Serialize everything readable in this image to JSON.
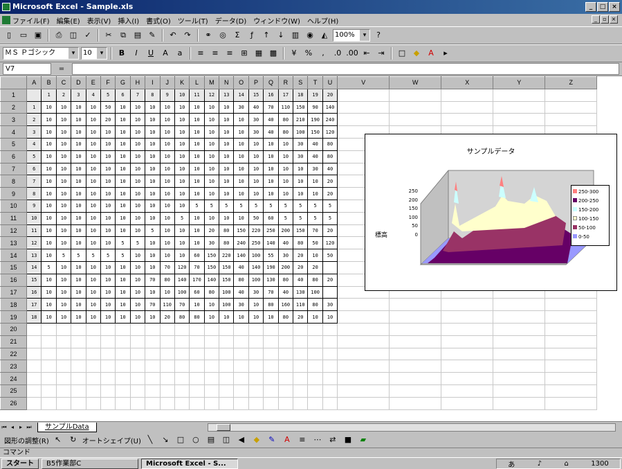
{
  "window": {
    "title": "Microsoft Excel - Sample.xls",
    "controls": [
      "_",
      "□",
      "×"
    ]
  },
  "menu": [
    "ファイル(F)",
    "編集(E)",
    "表示(V)",
    "挿入(I)",
    "書式(O)",
    "ツール(T)",
    "データ(D)",
    "ウィンドウ(W)",
    "ヘルプ(H)"
  ],
  "toolbar": {
    "zoom": "100%",
    "font_name": "ＭＳ Ｐゴシック",
    "font_size": "10"
  },
  "formula": {
    "name_box": "V7",
    "fx": "="
  },
  "grid": {
    "columns": [
      "A",
      "B",
      "C",
      "D",
      "E",
      "F",
      "G",
      "H",
      "I",
      "J",
      "K",
      "L",
      "M",
      "N",
      "O",
      "P",
      "Q",
      "R",
      "S",
      "T",
      "U",
      "V",
      "W",
      "X",
      "Y",
      "Z"
    ],
    "rows": [
      "1",
      "2",
      "3",
      "4",
      "5",
      "6",
      "7",
      "8",
      "9",
      "10",
      "11",
      "12",
      "13",
      "14",
      "15",
      "16",
      "17",
      "18",
      "19",
      "20",
      "21",
      "22",
      "23",
      "24",
      "25",
      "26"
    ],
    "header_row": [
      "",
      "1",
      "2",
      "3",
      "4",
      "5",
      "6",
      "7",
      "8",
      "9",
      "10",
      "11",
      "12",
      "13",
      "14",
      "15",
      "16",
      "17",
      "18",
      "19",
      "20"
    ],
    "data": [
      [
        "1",
        "10",
        "10",
        "10",
        "10",
        "50",
        "10",
        "10",
        "10",
        "10",
        "10",
        "10",
        "10",
        "10",
        "30",
        "40",
        "70",
        "110",
        "150",
        "90",
        "140",
        "210"
      ],
      [
        "2",
        "10",
        "10",
        "10",
        "10",
        "20",
        "10",
        "10",
        "10",
        "10",
        "10",
        "10",
        "10",
        "10",
        "10",
        "30",
        "40",
        "80",
        "210",
        "190",
        "240"
      ],
      [
        "3",
        "10",
        "10",
        "10",
        "10",
        "10",
        "10",
        "10",
        "10",
        "10",
        "10",
        "10",
        "10",
        "10",
        "10",
        "30",
        "40",
        "80",
        "100",
        "150",
        "120"
      ],
      [
        "4",
        "10",
        "10",
        "10",
        "10",
        "10",
        "10",
        "10",
        "10",
        "10",
        "10",
        "10",
        "10",
        "10",
        "10",
        "10",
        "10",
        "10",
        "30",
        "40",
        "80",
        "100"
      ],
      [
        "5",
        "10",
        "10",
        "10",
        "10",
        "10",
        "10",
        "10",
        "10",
        "10",
        "10",
        "10",
        "10",
        "10",
        "10",
        "10",
        "10",
        "10",
        "30",
        "40",
        "80",
        "10"
      ],
      [
        "6",
        "10",
        "10",
        "10",
        "10",
        "10",
        "10",
        "10",
        "10",
        "10",
        "10",
        "10",
        "10",
        "10",
        "10",
        "10",
        "10",
        "10",
        "10",
        "30",
        "40",
        "10"
      ],
      [
        "7",
        "10",
        "10",
        "10",
        "10",
        "10",
        "10",
        "10",
        "10",
        "10",
        "10",
        "10",
        "10",
        "10",
        "10",
        "10",
        "10",
        "10",
        "10",
        "10",
        "20",
        "10"
      ],
      [
        "8",
        "10",
        "10",
        "10",
        "10",
        "10",
        "10",
        "10",
        "10",
        "10",
        "10",
        "10",
        "10",
        "10",
        "10",
        "10",
        "10",
        "10",
        "10",
        "10",
        "20",
        "10"
      ],
      [
        "9",
        "10",
        "10",
        "10",
        "10",
        "10",
        "10",
        "10",
        "10",
        "10",
        "10",
        "5",
        "5",
        "5",
        "5",
        "5",
        "5",
        "5",
        "5",
        "5",
        "5",
        "5"
      ],
      [
        "10",
        "10",
        "10",
        "10",
        "10",
        "10",
        "10",
        "10",
        "10",
        "10",
        "5",
        "10",
        "10",
        "10",
        "10",
        "50",
        "60",
        "5",
        "5",
        "5",
        "5"
      ],
      [
        "11",
        "10",
        "10",
        "10",
        "10",
        "10",
        "10",
        "10",
        "5",
        "10",
        "10",
        "10",
        "20",
        "80",
        "150",
        "220",
        "250",
        "200",
        "150",
        "70",
        "20",
        "50"
      ],
      [
        "12",
        "10",
        "10",
        "10",
        "10",
        "10",
        "5",
        "5",
        "10",
        "10",
        "10",
        "10",
        "30",
        "80",
        "240",
        "250",
        "140",
        "40",
        "80",
        "50",
        "120",
        "100"
      ],
      [
        "13",
        "10",
        "5",
        "5",
        "5",
        "5",
        "5",
        "10",
        "10",
        "10",
        "10",
        "60",
        "150",
        "220",
        "140",
        "100",
        "55",
        "30",
        "20",
        "10",
        "50"
      ],
      [
        "14",
        "5",
        "10",
        "10",
        "10",
        "10",
        "10",
        "10",
        "10",
        "70",
        "120",
        "70",
        "150",
        "150",
        "40",
        "140",
        "190",
        "200",
        "20",
        "20"
      ],
      [
        "15",
        "10",
        "10",
        "10",
        "10",
        "10",
        "10",
        "10",
        "70",
        "80",
        "140",
        "170",
        "140",
        "150",
        "80",
        "100",
        "130",
        "80",
        "40",
        "80",
        "20"
      ],
      [
        "16",
        "10",
        "10",
        "10",
        "10",
        "10",
        "10",
        "10",
        "10",
        "10",
        "100",
        "60",
        "80",
        "100",
        "40",
        "30",
        "70",
        "40",
        "130",
        "100"
      ],
      [
        "17",
        "10",
        "10",
        "10",
        "10",
        "10",
        "10",
        "10",
        "70",
        "110",
        "70",
        "10",
        "10",
        "100",
        "30",
        "10",
        "80",
        "160",
        "110",
        "80",
        "30"
      ],
      [
        "18",
        "10",
        "10",
        "10",
        "10",
        "10",
        "10",
        "10",
        "10",
        "20",
        "80",
        "80",
        "10",
        "10",
        "10",
        "10",
        "10",
        "80",
        "20",
        "10",
        "10"
      ]
    ]
  },
  "chart": {
    "title": "サンプルデータ",
    "ylabel": "標高",
    "yticks": [
      "250",
      "200",
      "150",
      "100",
      "50",
      "0"
    ],
    "legend": [
      "200-250",
      "150-200",
      "100-150",
      "50-100",
      "0-50"
    ],
    "legend_extra": "250-300",
    "colors": [
      "#9999ff",
      "#993366",
      "#ffffcc",
      "#ccffff",
      "#660066",
      "#ff8080"
    ]
  },
  "sheet": {
    "tab": "サンプルData"
  },
  "drawbar": {
    "draw": "図形の調整(R)",
    "autoshape": "オートシェイプ(U)"
  },
  "status": "コマンド",
  "taskbar": {
    "start": "スタート",
    "items": [
      "B5作業部C",
      "Microsoft Excel - S..."
    ],
    "clock": "1300"
  }
}
